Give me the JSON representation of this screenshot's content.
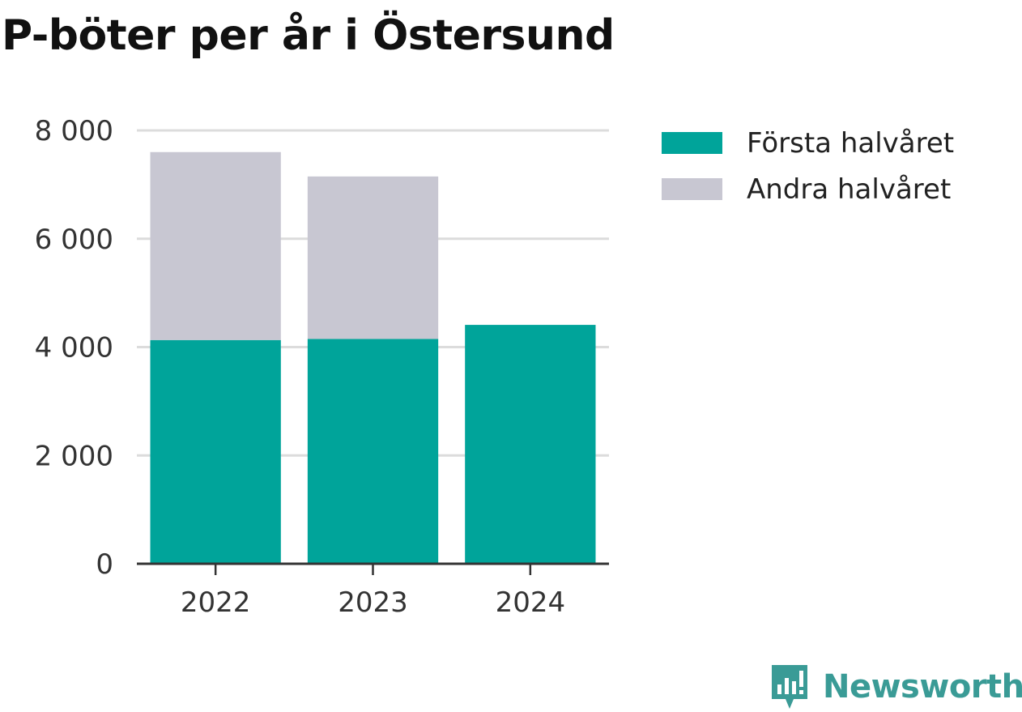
{
  "header": {
    "title": "P-böter per år i Östersund"
  },
  "chart_data": {
    "type": "bar",
    "stacked": true,
    "title": "P-böter per år i Östersund",
    "xlabel": "",
    "ylabel": "",
    "categories": [
      "2022",
      "2023",
      "2024"
    ],
    "series": [
      {
        "name": "Första halvåret",
        "color": "#00a49a",
        "values": [
          4130,
          4150,
          4410
        ]
      },
      {
        "name": "Andra halvåret",
        "color": "#c8c7d2",
        "values": [
          3470,
          3000,
          null
        ]
      }
    ],
    "ylim": [
      0,
      8000
    ],
    "yticks": [
      0,
      2000,
      4000,
      6000,
      8000
    ],
    "ytick_labels": [
      "0",
      "2 000",
      "4 000",
      "6 000",
      "8 000"
    ],
    "grid": true,
    "legend": "right"
  },
  "branding": {
    "name": "Newsworthy",
    "icon": "newsworthy-logo-icon",
    "color": "#3a9b96"
  }
}
